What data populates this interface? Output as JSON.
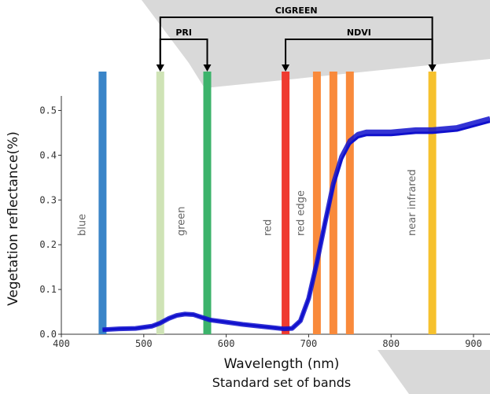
{
  "chart_data": {
    "type": "line",
    "xlabel": "Wavelength (nm)",
    "ylabel": "Vegetation reflectance(%)",
    "caption": "Standard set of bands",
    "xlim": [
      400,
      920
    ],
    "ylim": [
      0,
      0.55
    ],
    "xticks": [
      400,
      500,
      600,
      700,
      800,
      900
    ],
    "yticks": [
      0.0,
      0.1,
      0.2,
      0.3,
      0.4,
      0.5
    ],
    "xtick_labels": [
      "400",
      "500",
      "600",
      "700",
      "800",
      "900"
    ],
    "ytick_labels": [
      "0.0",
      "0.1",
      "0.2",
      "0.3",
      "0.4",
      "0.5"
    ],
    "series": [
      {
        "color": "#1010cc",
        "x": [
          450,
          470,
          490,
          510,
          520,
          530,
          540,
          550,
          560,
          570,
          580,
          600,
          620,
          640,
          660,
          670,
          680,
          690,
          700,
          710,
          720,
          730,
          740,
          750,
          760,
          770,
          800,
          830,
          850,
          880,
          920
        ],
        "y": [
          0.01,
          0.012,
          0.013,
          0.018,
          0.025,
          0.035,
          0.042,
          0.045,
          0.044,
          0.038,
          0.032,
          0.027,
          0.022,
          0.018,
          0.014,
          0.012,
          0.013,
          0.03,
          0.08,
          0.16,
          0.25,
          0.33,
          0.39,
          0.425,
          0.44,
          0.445,
          0.445,
          0.45,
          0.45,
          0.455,
          0.475
        ]
      }
    ],
    "bands": [
      {
        "wavelength": 450,
        "color": "#3a85c8",
        "label": "blue"
      },
      {
        "wavelength": 520,
        "color": "#cfe3b6",
        "label": ""
      },
      {
        "wavelength": 577,
        "color": "#3cb36b",
        "label": "green"
      },
      {
        "wavelength": 672,
        "color": "#ef3b30",
        "label": "red"
      },
      {
        "wavelength": 710,
        "color": "#f98a3b",
        "label": "red edge"
      },
      {
        "wavelength": 730,
        "color": "#f98a3b",
        "label": ""
      },
      {
        "wavelength": 750,
        "color": "#f98a3b",
        "label": ""
      },
      {
        "wavelength": 850,
        "color": "#f6c12d",
        "label": "near infrared"
      }
    ],
    "band_label_positions": [
      {
        "wavelength": 435,
        "text": "blue"
      },
      {
        "wavelength": 555,
        "text": "green"
      },
      {
        "wavelength": 660,
        "text": "red"
      },
      {
        "wavelength": 700,
        "text": "red edge"
      },
      {
        "wavelength": 835,
        "text": "near infrared"
      }
    ],
    "indices": [
      {
        "name": "CIGREEN",
        "from": 520,
        "to": 850
      },
      {
        "name": "PRI",
        "from": 520,
        "to": 577
      },
      {
        "name": "NDVI",
        "from": 672,
        "to": 850
      }
    ]
  }
}
